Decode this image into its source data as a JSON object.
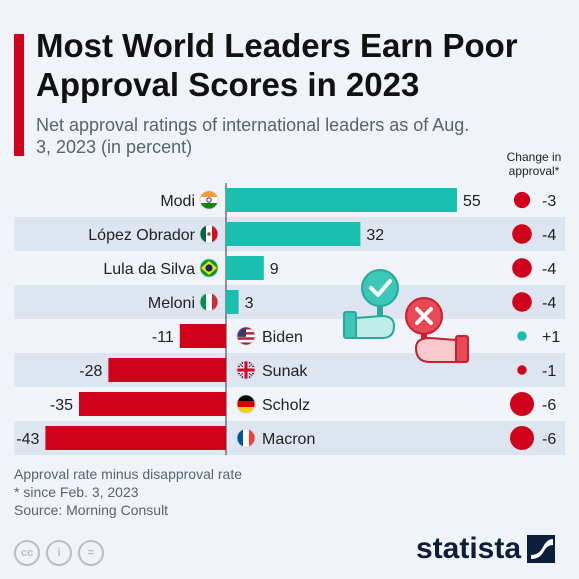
{
  "header": {
    "title": "Most World Leaders Earn Poor Approval Scores in 2023",
    "subtitle": "Net approval ratings of international leaders as of Aug. 3, 2023 (in percent)",
    "change_header": "Change in approval*"
  },
  "colors": {
    "accent": "#d0021b",
    "positive": "#1bbfb0",
    "negative": "#d0021b",
    "row_band": "#dde5f0",
    "brand": "#0b1f3a"
  },
  "chart_data": {
    "type": "bar",
    "orientation": "horizontal",
    "categories": [
      "Modi",
      "López Obrador",
      "Lula da Silva",
      "Meloni",
      "Biden",
      "Sunak",
      "Scholz",
      "Macron"
    ],
    "flags": [
      "flag-india-icon",
      "flag-mexico-icon",
      "flag-brazil-icon",
      "flag-italy-icon",
      "flag-usa-icon",
      "flag-uk-icon",
      "flag-germany-icon",
      "flag-france-icon"
    ],
    "values": [
      55,
      32,
      9,
      3,
      -11,
      -28,
      -35,
      -43
    ],
    "change_since_feb": [
      "-3",
      "-4",
      "-4",
      "-4",
      "+1",
      "-1",
      "-6",
      "-6"
    ],
    "xlim": [
      -43,
      55
    ],
    "legend": "none",
    "grid": false
  },
  "footer": {
    "note1": "Approval rate minus disapproval rate",
    "note2": "* since Feb. 3, 2023",
    "source": "Source: Morning Consult"
  },
  "license_icons": [
    "creative-commons-icon",
    "attribution-icon",
    "no-derivatives-icon"
  ],
  "license_text": [
    "cc",
    "i",
    "="
  ],
  "brand": {
    "name": "statista"
  }
}
